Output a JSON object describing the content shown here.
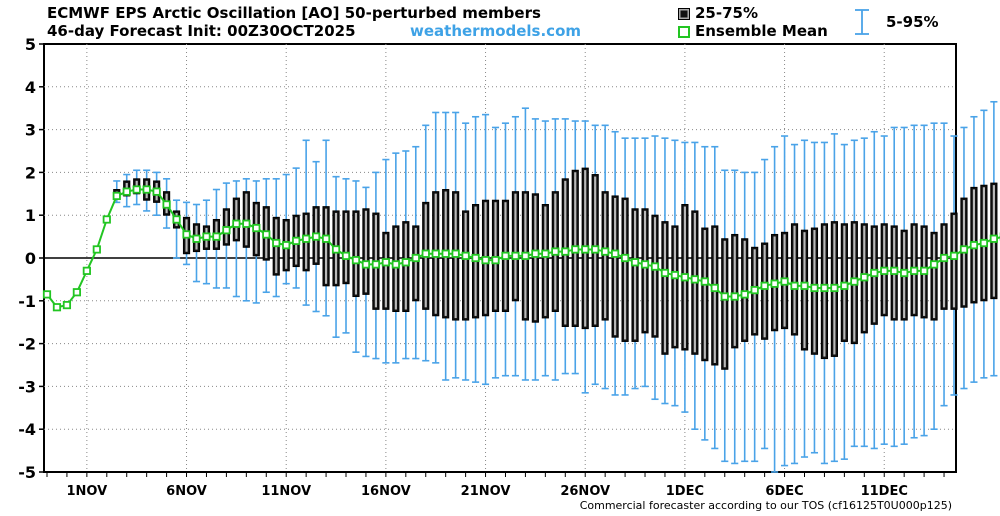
{
  "header": {
    "title": "ECMWF EPS Arctic Oscillation [AO]  50-perturbed members",
    "subtitle": "46-day Forecast Init: 00Z30OCT2025",
    "brand": "weathermodels.com"
  },
  "legend": {
    "box_label": "25-75%",
    "mean_label": "Ensemble Mean",
    "range_label": "5-95%"
  },
  "footer": "Commercial forecaster according to our TOS (cf16125T0U000p125)",
  "colors": {
    "box_fill": "#111111",
    "box_inner": "#b9b9b9",
    "whisker": "#4aa3e8",
    "mean_line": "#22c522",
    "mean_marker_fill": "#ffffff",
    "zero_line": "#000000"
  },
  "chart_data": {
    "type": "box",
    "title": "ECMWF EPS Arctic Oscillation [AO]  50-perturbed members",
    "ylim": [
      -5,
      5
    ],
    "yticks": [
      5,
      4,
      3,
      2,
      1,
      0,
      -1,
      -2,
      -3,
      -4,
      -5
    ],
    "xlabels": [
      "1NOV",
      "6NOV",
      "11NOV",
      "16NOV",
      "21NOV",
      "26NOV",
      "1DEC",
      "6DEC",
      "11DEC"
    ],
    "xlabel_day": [
      3,
      8,
      13,
      18,
      23,
      28,
      33,
      38,
      43
    ],
    "x_unit": "day",
    "day_range": [
      0.85,
      46.6
    ],
    "zero_line": true,
    "grid": true,
    "mean_only": {
      "day": [
        1.0,
        1.5,
        2.0,
        2.5,
        3.0,
        3.5,
        4.0
      ],
      "mean": [
        -0.85,
        -1.15,
        -1.1,
        -0.8,
        -0.3,
        0.2,
        0.9
      ]
    },
    "boxes": [
      {
        "day": 4.0,
        "p5": 0.95,
        "p25": 0.95,
        "mean": 0.9,
        "p75": 0.95,
        "p95": 0.95
      },
      {
        "day": 4.5,
        "p5": 1.3,
        "p25": 1.4,
        "mean": 1.45,
        "p75": 1.6,
        "p95": 1.8
      },
      {
        "day": 5.0,
        "p5": 1.2,
        "p25": 1.45,
        "mean": 1.55,
        "p75": 1.8,
        "p95": 1.95
      },
      {
        "day": 5.5,
        "p5": 1.25,
        "p25": 1.5,
        "mean": 1.6,
        "p75": 1.85,
        "p95": 2.05
      },
      {
        "day": 6.0,
        "p5": 1.1,
        "p25": 1.35,
        "mean": 1.6,
        "p75": 1.85,
        "p95": 2.05
      },
      {
        "day": 6.5,
        "p5": 1.0,
        "p25": 1.3,
        "mean": 1.55,
        "p75": 1.8,
        "p95": 2.0
      },
      {
        "day": 7.0,
        "p5": 0.7,
        "p25": 1.0,
        "mean": 1.25,
        "p75": 1.55,
        "p95": 1.85
      },
      {
        "day": 7.5,
        "p5": 0.0,
        "p25": 0.7,
        "mean": 0.9,
        "p75": 1.1,
        "p95": 1.35
      },
      {
        "day": 8.0,
        "p5": -0.15,
        "p25": 0.1,
        "mean": 0.55,
        "p75": 0.95,
        "p95": 1.3
      },
      {
        "day": 8.5,
        "p5": -0.55,
        "p25": 0.15,
        "mean": 0.45,
        "p75": 0.8,
        "p95": 1.25
      },
      {
        "day": 9.0,
        "p5": -0.6,
        "p25": 0.2,
        "mean": 0.5,
        "p75": 0.75,
        "p95": 1.35
      },
      {
        "day": 9.5,
        "p5": -0.7,
        "p25": 0.2,
        "mean": 0.5,
        "p75": 0.9,
        "p95": 1.6
      },
      {
        "day": 10.0,
        "p5": -0.7,
        "p25": 0.3,
        "mean": 0.65,
        "p75": 1.15,
        "p95": 1.75
      },
      {
        "day": 10.5,
        "p5": -0.9,
        "p25": 0.4,
        "mean": 0.8,
        "p75": 1.4,
        "p95": 1.8
      },
      {
        "day": 11.0,
        "p5": -1.0,
        "p25": 0.25,
        "mean": 0.8,
        "p75": 1.55,
        "p95": 1.85
      },
      {
        "day": 11.5,
        "p5": -1.05,
        "p25": 0.05,
        "mean": 0.7,
        "p75": 1.3,
        "p95": 1.8
      },
      {
        "day": 12.0,
        "p5": -0.8,
        "p25": -0.05,
        "mean": 0.55,
        "p75": 1.2,
        "p95": 1.85
      },
      {
        "day": 12.5,
        "p5": -0.9,
        "p25": -0.4,
        "mean": 0.35,
        "p75": 0.95,
        "p95": 1.85
      },
      {
        "day": 13.0,
        "p5": -0.6,
        "p25": -0.3,
        "mean": 0.3,
        "p75": 0.9,
        "p95": 1.95
      },
      {
        "day": 13.5,
        "p5": -0.7,
        "p25": -0.2,
        "mean": 0.4,
        "p75": 1.0,
        "p95": 2.1
      },
      {
        "day": 14.0,
        "p5": -1.1,
        "p25": -0.3,
        "mean": 0.45,
        "p75": 1.05,
        "p95": 2.75
      },
      {
        "day": 14.5,
        "p5": -1.25,
        "p25": -0.15,
        "mean": 0.5,
        "p75": 1.2,
        "p95": 2.25
      },
      {
        "day": 15.0,
        "p5": -1.35,
        "p25": -0.65,
        "mean": 0.45,
        "p75": 1.2,
        "p95": 2.75
      },
      {
        "day": 15.5,
        "p5": -1.85,
        "p25": -0.65,
        "mean": 0.2,
        "p75": 1.1,
        "p95": 1.9
      },
      {
        "day": 16.0,
        "p5": -1.75,
        "p25": -0.6,
        "mean": 0.05,
        "p75": 1.1,
        "p95": 1.85
      },
      {
        "day": 16.5,
        "p5": -2.2,
        "p25": -0.9,
        "mean": -0.05,
        "p75": 1.1,
        "p95": 1.8
      },
      {
        "day": 17.0,
        "p5": -2.3,
        "p25": -0.85,
        "mean": -0.15,
        "p75": 1.15,
        "p95": 1.65
      },
      {
        "day": 17.5,
        "p5": -2.35,
        "p25": -1.2,
        "mean": -0.15,
        "p75": 1.05,
        "p95": 2.0
      },
      {
        "day": 18.0,
        "p5": -2.45,
        "p25": -1.2,
        "mean": -0.1,
        "p75": 0.6,
        "p95": 2.3
      },
      {
        "day": 18.5,
        "p5": -2.45,
        "p25": -1.25,
        "mean": -0.15,
        "p75": 0.75,
        "p95": 2.45
      },
      {
        "day": 19.0,
        "p5": -2.35,
        "p25": -1.25,
        "mean": -0.1,
        "p75": 0.85,
        "p95": 2.5
      },
      {
        "day": 19.5,
        "p5": -2.35,
        "p25": -1.0,
        "mean": 0.0,
        "p75": 0.75,
        "p95": 2.6
      },
      {
        "day": 20.0,
        "p5": -2.4,
        "p25": -1.2,
        "mean": 0.1,
        "p75": 1.3,
        "p95": 3.1
      },
      {
        "day": 20.5,
        "p5": -2.45,
        "p25": -1.35,
        "mean": 0.1,
        "p75": 1.55,
        "p95": 3.4
      },
      {
        "day": 21.0,
        "p5": -2.85,
        "p25": -1.4,
        "mean": 0.1,
        "p75": 1.6,
        "p95": 3.4
      },
      {
        "day": 21.5,
        "p5": -2.8,
        "p25": -1.45,
        "mean": 0.1,
        "p75": 1.55,
        "p95": 3.4
      },
      {
        "day": 22.0,
        "p5": -2.85,
        "p25": -1.45,
        "mean": 0.05,
        "p75": 1.1,
        "p95": 3.15
      },
      {
        "day": 22.5,
        "p5": -2.9,
        "p25": -1.4,
        "mean": 0.0,
        "p75": 1.25,
        "p95": 3.3
      },
      {
        "day": 23.0,
        "p5": -2.95,
        "p25": -1.35,
        "mean": -0.05,
        "p75": 1.35,
        "p95": 3.35
      },
      {
        "day": 23.5,
        "p5": -2.8,
        "p25": -1.25,
        "mean": -0.05,
        "p75": 1.35,
        "p95": 3.05
      },
      {
        "day": 24.0,
        "p5": -2.75,
        "p25": -1.25,
        "mean": 0.05,
        "p75": 1.35,
        "p95": 3.15
      },
      {
        "day": 24.5,
        "p5": -2.75,
        "p25": -1.0,
        "mean": 0.05,
        "p75": 1.55,
        "p95": 3.3
      },
      {
        "day": 25.0,
        "p5": -2.85,
        "p25": -1.45,
        "mean": 0.05,
        "p75": 1.55,
        "p95": 3.5
      },
      {
        "day": 25.5,
        "p5": -2.85,
        "p25": -1.5,
        "mean": 0.1,
        "p75": 1.5,
        "p95": 3.25
      },
      {
        "day": 26.0,
        "p5": -2.75,
        "p25": -1.4,
        "mean": 0.1,
        "p75": 1.25,
        "p95": 3.2
      },
      {
        "day": 26.5,
        "p5": -2.85,
        "p25": -1.25,
        "mean": 0.15,
        "p75": 1.55,
        "p95": 3.25
      },
      {
        "day": 27.0,
        "p5": -2.7,
        "p25": -1.6,
        "mean": 0.15,
        "p75": 1.85,
        "p95": 3.25
      },
      {
        "day": 27.5,
        "p5": -2.7,
        "p25": -1.6,
        "mean": 0.2,
        "p75": 2.05,
        "p95": 3.2
      },
      {
        "day": 28.0,
        "p5": -3.15,
        "p25": -1.65,
        "mean": 0.2,
        "p75": 2.1,
        "p95": 3.2
      },
      {
        "day": 28.5,
        "p5": -2.95,
        "p25": -1.6,
        "mean": 0.2,
        "p75": 1.95,
        "p95": 3.1
      },
      {
        "day": 29.0,
        "p5": -3.05,
        "p25": -1.45,
        "mean": 0.15,
        "p75": 1.55,
        "p95": 3.1
      },
      {
        "day": 29.5,
        "p5": -3.2,
        "p25": -1.85,
        "mean": 0.1,
        "p75": 1.45,
        "p95": 2.95
      },
      {
        "day": 30.0,
        "p5": -3.2,
        "p25": -1.95,
        "mean": 0.0,
        "p75": 1.4,
        "p95": 2.8
      },
      {
        "day": 30.5,
        "p5": -3.05,
        "p25": -1.95,
        "mean": -0.1,
        "p75": 1.15,
        "p95": 2.8
      },
      {
        "day": 31.0,
        "p5": -3.0,
        "p25": -1.75,
        "mean": -0.15,
        "p75": 1.15,
        "p95": 2.8
      },
      {
        "day": 31.5,
        "p5": -3.3,
        "p25": -1.85,
        "mean": -0.2,
        "p75": 1.0,
        "p95": 2.85
      },
      {
        "day": 32.0,
        "p5": -3.4,
        "p25": -2.25,
        "mean": -0.35,
        "p75": 0.85,
        "p95": 2.8
      },
      {
        "day": 32.5,
        "p5": -3.45,
        "p25": -2.1,
        "mean": -0.4,
        "p75": 0.75,
        "p95": 2.75
      },
      {
        "day": 33.0,
        "p5": -3.6,
        "p25": -2.15,
        "mean": -0.45,
        "p75": 1.25,
        "p95": 2.7
      },
      {
        "day": 33.5,
        "p5": -4.0,
        "p25": -2.25,
        "mean": -0.5,
        "p75": 1.1,
        "p95": 2.7
      },
      {
        "day": 34.0,
        "p5": -4.25,
        "p25": -2.4,
        "mean": -0.55,
        "p75": 0.7,
        "p95": 2.6
      },
      {
        "day": 34.5,
        "p5": -4.45,
        "p25": -2.5,
        "mean": -0.7,
        "p75": 0.75,
        "p95": 2.6
      },
      {
        "day": 35.0,
        "p5": -4.75,
        "p25": -2.6,
        "mean": -0.9,
        "p75": 0.45,
        "p95": 2.05
      },
      {
        "day": 35.5,
        "p5": -4.8,
        "p25": -2.1,
        "mean": -0.9,
        "p75": 0.55,
        "p95": 2.05
      },
      {
        "day": 36.0,
        "p5": -4.75,
        "p25": -1.95,
        "mean": -0.85,
        "p75": 0.45,
        "p95": 2.0
      },
      {
        "day": 36.5,
        "p5": -4.75,
        "p25": -1.8,
        "mean": -0.75,
        "p75": 0.25,
        "p95": 2.0
      },
      {
        "day": 37.0,
        "p5": -4.45,
        "p25": -1.9,
        "mean": -0.65,
        "p75": 0.35,
        "p95": 2.3
      },
      {
        "day": 37.5,
        "p5": -5.0,
        "p25": -1.7,
        "mean": -0.6,
        "p75": 0.55,
        "p95": 2.6
      },
      {
        "day": 38.0,
        "p5": -4.85,
        "p25": -1.65,
        "mean": -0.55,
        "p75": 0.6,
        "p95": 2.85
      },
      {
        "day": 38.5,
        "p5": -4.8,
        "p25": -1.8,
        "mean": -0.65,
        "p75": 0.8,
        "p95": 2.65
      },
      {
        "day": 39.0,
        "p5": -4.65,
        "p25": -2.15,
        "mean": -0.65,
        "p75": 0.65,
        "p95": 2.75
      },
      {
        "day": 39.5,
        "p5": -4.55,
        "p25": -2.25,
        "mean": -0.7,
        "p75": 0.7,
        "p95": 2.7
      },
      {
        "day": 40.0,
        "p5": -4.8,
        "p25": -2.35,
        "mean": -0.7,
        "p75": 0.8,
        "p95": 2.7
      },
      {
        "day": 40.5,
        "p5": -4.75,
        "p25": -2.3,
        "mean": -0.7,
        "p75": 0.85,
        "p95": 2.9
      },
      {
        "day": 41.0,
        "p5": -4.7,
        "p25": -1.95,
        "mean": -0.65,
        "p75": 0.8,
        "p95": 2.65
      },
      {
        "day": 41.5,
        "p5": -4.4,
        "p25": -2.0,
        "mean": -0.55,
        "p75": 0.85,
        "p95": 2.75
      },
      {
        "day": 42.0,
        "p5": -4.4,
        "p25": -1.75,
        "mean": -0.45,
        "p75": 0.8,
        "p95": 2.8
      },
      {
        "day": 42.5,
        "p5": -4.45,
        "p25": -1.55,
        "mean": -0.35,
        "p75": 0.75,
        "p95": 2.95
      },
      {
        "day": 43.0,
        "p5": -4.35,
        "p25": -1.35,
        "mean": -0.3,
        "p75": 0.8,
        "p95": 2.85
      },
      {
        "day": 43.5,
        "p5": -4.4,
        "p25": -1.45,
        "mean": -0.3,
        "p75": 0.75,
        "p95": 3.05
      },
      {
        "day": 44.0,
        "p5": -4.35,
        "p25": -1.45,
        "mean": -0.35,
        "p75": 0.65,
        "p95": 3.05
      },
      {
        "day": 44.5,
        "p5": -4.2,
        "p25": -1.35,
        "mean": -0.3,
        "p75": 0.8,
        "p95": 3.1
      },
      {
        "day": 45.0,
        "p5": -4.15,
        "p25": -1.4,
        "mean": -0.3,
        "p75": 0.75,
        "p95": 3.1
      },
      {
        "day": 45.5,
        "p5": -4.0,
        "p25": -1.45,
        "mean": -0.15,
        "p75": 0.6,
        "p95": 3.15
      },
      {
        "day": 46.0,
        "p5": -3.45,
        "p25": -1.2,
        "mean": 0.0,
        "p75": 0.8,
        "p95": 3.15
      },
      {
        "day": 46.5,
        "p5": -3.2,
        "p25": -1.2,
        "mean": 0.05,
        "p75": 1.05,
        "p95": 2.85
      },
      {
        "day": 47.0,
        "p5": -3.05,
        "p25": -1.15,
        "mean": 0.2,
        "p75": 1.4,
        "p95": 3.05
      },
      {
        "day": 47.5,
        "p5": -2.9,
        "p25": -1.05,
        "mean": 0.3,
        "p75": 1.65,
        "p95": 3.3
      },
      {
        "day": 48.0,
        "p5": -2.8,
        "p25": -1.0,
        "mean": 0.35,
        "p75": 1.7,
        "p95": 3.45
      },
      {
        "day": 48.5,
        "p5": -2.75,
        "p25": -0.95,
        "mean": 0.45,
        "p75": 1.75,
        "p95": 3.65
      },
      {
        "day": 49.0,
        "p5": -2.7,
        "p25": -0.85,
        "mean": 0.5,
        "p75": 1.75,
        "p95": 3.75
      },
      {
        "day": 49.5,
        "p5": -2.6,
        "p25": -0.7,
        "mean": 0.6,
        "p75": 2.05,
        "p95": 3.75
      }
    ]
  }
}
